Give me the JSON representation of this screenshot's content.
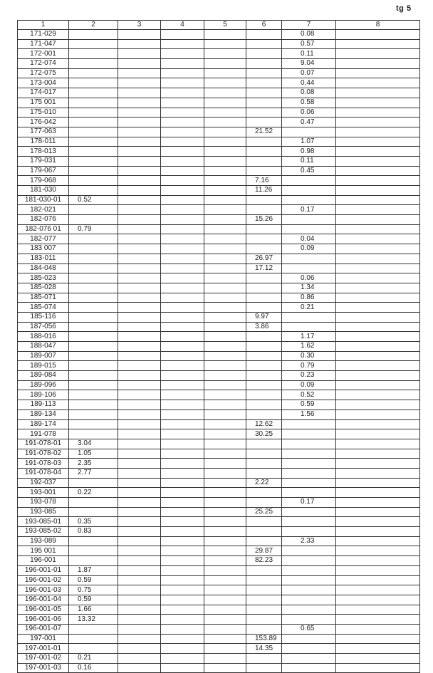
{
  "page_label": "tg 5",
  "columns": [
    "1",
    "2",
    "3",
    "4",
    "5",
    "6",
    "7",
    "8"
  ],
  "rows": [
    [
      "171-029",
      "",
      "",
      "",
      "",
      "",
      "0.08",
      ""
    ],
    [
      "171-047",
      "",
      "",
      "",
      "",
      "",
      "0.57",
      ""
    ],
    [
      "172-001",
      "",
      "",
      "",
      "",
      "",
      "0.11",
      ""
    ],
    [
      "172-074",
      "",
      "",
      "",
      "",
      "",
      "9.04",
      ""
    ],
    [
      "172-075",
      "",
      "",
      "",
      "",
      "",
      "0.07",
      ""
    ],
    [
      "173-004",
      "",
      "",
      "",
      "",
      "",
      "0.44",
      ""
    ],
    [
      "174-017",
      "",
      "",
      "",
      "",
      "",
      "0.08",
      ""
    ],
    [
      "175 001",
      "",
      "",
      "",
      "",
      "",
      "0.58",
      ""
    ],
    [
      "175-010",
      "",
      "",
      "",
      "",
      "",
      "0.06",
      ""
    ],
    [
      "176-042",
      "",
      "",
      "",
      "",
      "",
      "0.47",
      ""
    ],
    [
      "177-063",
      "",
      "",
      "",
      "",
      "21.52",
      "",
      ""
    ],
    [
      "178-011",
      "",
      "",
      "",
      "",
      "",
      "1.07",
      ""
    ],
    [
      "178-013",
      "",
      "",
      "",
      "",
      "",
      "0.98",
      ""
    ],
    [
      "179-031",
      "",
      "",
      "",
      "",
      "",
      "0.11",
      ""
    ],
    [
      "179-067",
      "",
      "",
      "",
      "",
      "",
      "0.45",
      ""
    ],
    [
      "179-068",
      "",
      "",
      "",
      "",
      "7.16",
      "",
      ""
    ],
    [
      "181-030",
      "",
      "",
      "",
      "",
      "11.26",
      "",
      ""
    ],
    [
      "181-030-01",
      "0.52",
      "",
      "",
      "",
      "",
      "",
      ""
    ],
    [
      "182-021",
      "",
      "",
      "",
      "",
      "",
      "0.17",
      ""
    ],
    [
      "182-076",
      "",
      "",
      "",
      "",
      "15.26",
      "",
      ""
    ],
    [
      "182-076 01",
      "0.79",
      "",
      "",
      "",
      "",
      "",
      ""
    ],
    [
      "182-077",
      "",
      "",
      "",
      "",
      "",
      "0.04",
      ""
    ],
    [
      "183 007",
      "",
      "",
      "",
      "",
      "",
      "0.09",
      ""
    ],
    [
      "183-011",
      "",
      "",
      "",
      "",
      "26.97",
      "",
      ""
    ],
    [
      "184-048",
      "",
      "",
      "",
      "",
      "17.12",
      "",
      ""
    ],
    [
      "185-023",
      "",
      "",
      "",
      "",
      "",
      "0.06",
      ""
    ],
    [
      "185-028",
      "",
      "",
      "",
      "",
      "",
      "1.34",
      ""
    ],
    [
      "185-071",
      "",
      "",
      "",
      "",
      "",
      "0.86",
      ""
    ],
    [
      "185-074",
      "",
      "",
      "",
      "",
      "",
      "0.21",
      ""
    ],
    [
      "185-116",
      "",
      "",
      "",
      "",
      "9.97",
      "",
      ""
    ],
    [
      "187-056",
      "",
      "",
      "",
      "",
      "3.86",
      "",
      ""
    ],
    [
      "188-016",
      "",
      "",
      "",
      "",
      "",
      "1.17",
      ""
    ],
    [
      "188-047",
      "",
      "",
      "",
      "",
      "",
      "1.62",
      ""
    ],
    [
      "189-007",
      "",
      "",
      "",
      "",
      "",
      "0.30",
      ""
    ],
    [
      "189-015",
      "",
      "",
      "",
      "",
      "",
      "0.79",
      ""
    ],
    [
      "189-084",
      "",
      "",
      "",
      "",
      "",
      "0.23",
      ""
    ],
    [
      "189-096",
      "",
      "",
      "",
      "",
      "",
      "0.09",
      ""
    ],
    [
      "189-106",
      "",
      "",
      "",
      "",
      "",
      "0.52",
      ""
    ],
    [
      "189-113",
      "",
      "",
      "",
      "",
      "",
      "0.59",
      ""
    ],
    [
      "189-134",
      "",
      "",
      "",
      "",
      "",
      "1.56",
      ""
    ],
    [
      "189-174",
      "",
      "",
      "",
      "",
      "12.62",
      "",
      ""
    ],
    [
      "191-078",
      "",
      "",
      "",
      "",
      "30.25",
      "",
      ""
    ],
    [
      "191-078-01",
      "3.04",
      "",
      "",
      "",
      "",
      "",
      ""
    ],
    [
      "191-078-02",
      "1.05",
      "",
      "",
      "",
      "",
      "",
      ""
    ],
    [
      "191-078-03",
      "2.35",
      "",
      "",
      "",
      "",
      "",
      ""
    ],
    [
      "191-078-04",
      "2.77",
      "",
      "",
      "",
      "",
      "",
      ""
    ],
    [
      "192-037",
      "",
      "",
      "",
      "",
      "2.22",
      "",
      ""
    ],
    [
      "193-001",
      "0.22",
      "",
      "",
      "",
      "",
      "",
      ""
    ],
    [
      "193-078",
      "",
      "",
      "",
      "",
      "",
      "0.17",
      ""
    ],
    [
      "193-085",
      "",
      "",
      "",
      "",
      "25.25",
      "",
      ""
    ],
    [
      "193-085-01",
      "0.35",
      "",
      "",
      "",
      "",
      "",
      ""
    ],
    [
      "193-085-02",
      "0.83",
      "",
      "",
      "",
      "",
      "",
      ""
    ],
    [
      "193-089",
      "",
      "",
      "",
      "",
      "",
      "2.33",
      ""
    ],
    [
      "195 001",
      "",
      "",
      "",
      "",
      "29.87",
      "",
      ""
    ],
    [
      "196-001",
      "",
      "",
      "",
      "",
      "82.23",
      "",
      ""
    ],
    [
      "196-001-01",
      "1.87",
      "",
      "",
      "",
      "",
      "",
      ""
    ],
    [
      "196-001-02",
      "0.59",
      "",
      "",
      "",
      "",
      "",
      ""
    ],
    [
      "196-001-03",
      "0.75",
      "",
      "",
      "",
      "",
      "",
      ""
    ],
    [
      "196-001-04",
      "0.59",
      "",
      "",
      "",
      "",
      "",
      ""
    ],
    [
      "196-001-05",
      "1.66",
      "",
      "",
      "",
      "",
      "",
      ""
    ],
    [
      "196-001-06",
      "13.32",
      "",
      "",
      "",
      "",
      "",
      ""
    ],
    [
      "196-001-07",
      "",
      "",
      "",
      "",
      "",
      "0.65",
      ""
    ],
    [
      "197-001",
      "",
      "",
      "",
      "",
      "153.89",
      "",
      ""
    ],
    [
      "197-001-01",
      "",
      "",
      "",
      "",
      "14.35",
      "",
      ""
    ],
    [
      "197-001-02",
      "0.21",
      "",
      "",
      "",
      "",
      "",
      ""
    ],
    [
      "197-001-03",
      "0.16",
      "",
      "",
      "",
      "",
      "",
      ""
    ]
  ]
}
